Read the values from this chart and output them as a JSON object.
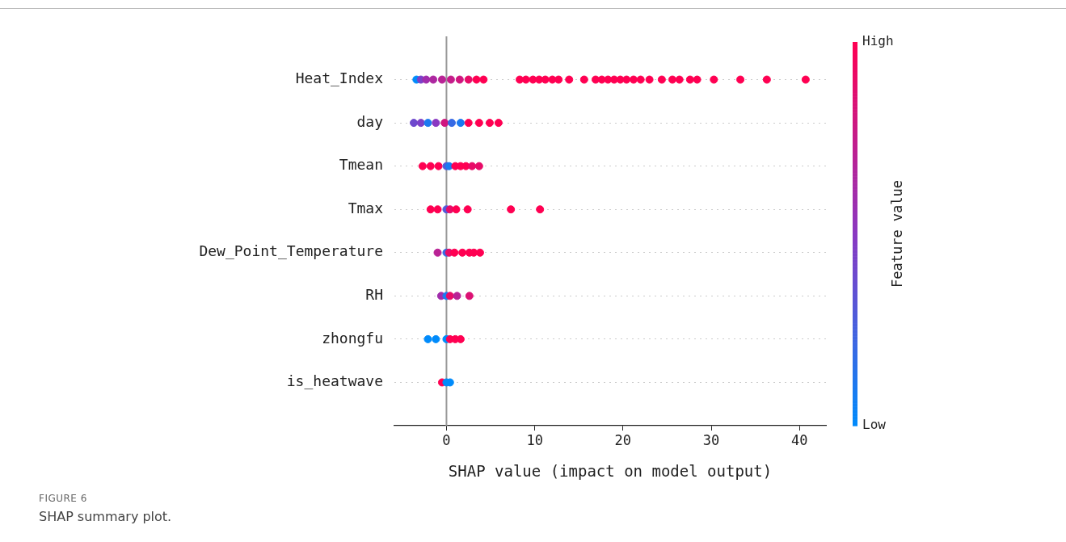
{
  "chart_data": {
    "type": "scatter",
    "orientation": "horizontal",
    "xlabel": "SHAP value (impact on model output)",
    "clabel": "Feature value",
    "categories": [
      "Heat_Index",
      "day",
      "Tmean",
      "Tmax",
      "Dew_Point_Temperature",
      "RH",
      "zhongfu",
      "is_heatwave"
    ],
    "series": [
      {
        "x": [
          "Heat_Index",
          "Heat_Index",
          "Heat_Index",
          "Heat_Index",
          "Heat_Index",
          "Heat_Index",
          "Heat_Index",
          "Heat_Index",
          "Heat_Index",
          "Heat_Index",
          "Heat_Index",
          "Heat_Index",
          "Heat_Index",
          "Heat_Index",
          "Heat_Index",
          "Heat_Index",
          "Heat_Index",
          "Heat_Index",
          "Heat_Index",
          "Heat_Index",
          "Heat_Index",
          "Heat_Index",
          "Heat_Index",
          "Heat_Index",
          "Heat_Index",
          "Heat_Index",
          "Heat_Index",
          "Heat_Index",
          "Heat_Index",
          "Heat_Index",
          "Heat_Index",
          "Heat_Index",
          "Heat_Index",
          "Heat_Index",
          "Heat_Index",
          "Heat_Index",
          "Heat_Index"
        ],
        "values": [
          -3.4,
          -2.9,
          -2.3,
          -1.5,
          -0.5,
          0.5,
          1.5,
          2.5,
          3.4,
          4.2,
          8.3,
          9.0,
          9.8,
          10.5,
          11.2,
          12.0,
          12.7,
          13.9,
          15.6,
          16.9,
          17.6,
          18.3,
          19.0,
          19.7,
          20.4,
          21.2,
          22.0,
          23.0,
          24.4,
          25.6,
          26.4,
          27.6,
          28.4,
          30.3,
          33.3,
          36.3,
          40.7
        ],
        "cvalues": [
          0,
          0.45,
          0.6,
          0.65,
          0.7,
          0.75,
          0.8,
          0.9,
          1,
          1,
          1,
          1,
          1,
          1,
          1,
          1,
          1,
          1,
          1,
          1,
          1,
          1,
          1,
          1,
          1,
          1,
          1,
          1,
          1,
          1,
          1,
          1,
          1,
          1,
          1,
          1,
          1
        ],
        "colors": [
          "#008bfb",
          "#7c40c8",
          "#a12dac",
          "#ad27a0",
          "#b92295",
          "#c51c8a",
          "#d0167f",
          "#e80b68",
          "#ff0052",
          "#ff0052",
          "#ff0052",
          "#ff0052",
          "#ff0052",
          "#ff0052",
          "#ff0052",
          "#ff0052",
          "#ff0052",
          "#ff0052",
          "#ff0052",
          "#ff0052",
          "#ff0052",
          "#ff0052",
          "#ff0052",
          "#ff0052",
          "#ff0052",
          "#ff0052",
          "#ff0052",
          "#ff0052",
          "#ff0052",
          "#ff0052",
          "#ff0052",
          "#ff0052",
          "#ff0052",
          "#ff0052",
          "#ff0052",
          "#ff0052",
          "#ff0052"
        ]
      },
      {
        "x": [
          "day",
          "day",
          "day",
          "day",
          "day",
          "day",
          "day",
          "day",
          "day",
          "day",
          "day"
        ],
        "values": [
          -3.7,
          -2.9,
          -2.1,
          -1.2,
          -0.2,
          0.6,
          1.6,
          2.5,
          3.7,
          4.9,
          5.9
        ],
        "cvalues": [
          0.4,
          0.45,
          0.1,
          0.5,
          0.8,
          0.2,
          0.1,
          1,
          1,
          1,
          1
        ],
        "colors": [
          "#6e49cd",
          "#7c40c8",
          "#1c7af0",
          "#8a38c2",
          "#d0167f",
          "#376ae4",
          "#1c7af0",
          "#ff0052",
          "#ff0052",
          "#ff0052",
          "#ff0052"
        ]
      },
      {
        "x": [
          "Tmean",
          "Tmean",
          "Tmean",
          "Tmean",
          "Tmean",
          "Tmean",
          "Tmean",
          "Tmean",
          "Tmean",
          "Tmean"
        ],
        "values": [
          -2.7,
          -1.8,
          -0.9,
          0,
          0.3,
          1.0,
          1.6,
          2.2,
          2.9,
          3.7
        ],
        "cvalues": [
          1,
          1,
          1,
          0.3,
          0.1,
          1,
          1,
          1,
          0.9,
          0.9
        ],
        "colors": [
          "#ff0052",
          "#ff0052",
          "#ff0052",
          "#5359d9",
          "#1c7af0",
          "#ff0052",
          "#ff0052",
          "#ff0052",
          "#e80b68",
          "#e80b68"
        ]
      },
      {
        "x": [
          "Tmax",
          "Tmax",
          "Tmax",
          "Tmax",
          "Tmax",
          "Tmax",
          "Tmax",
          "Tmax"
        ],
        "values": [
          -1.8,
          -1.0,
          0,
          0.4,
          1.1,
          2.4,
          7.3,
          10.6
        ],
        "cvalues": [
          1,
          1,
          0.3,
          0.9,
          1,
          1,
          1,
          1
        ],
        "colors": [
          "#ff0052",
          "#ff0052",
          "#5359d9",
          "#e80b68",
          "#ff0052",
          "#ff0052",
          "#ff0052",
          "#ff0052"
        ]
      },
      {
        "x": [
          "Dew_Point_Temperature",
          "Dew_Point_Temperature",
          "Dew_Point_Temperature",
          "Dew_Point_Temperature",
          "Dew_Point_Temperature",
          "Dew_Point_Temperature",
          "Dew_Point_Temperature",
          "Dew_Point_Temperature"
        ],
        "values": [
          -1.0,
          0,
          0.3,
          0.9,
          1.8,
          2.6,
          3.1,
          3.8
        ],
        "cvalues": [
          0.7,
          0.2,
          0.9,
          1,
          1,
          1,
          1,
          1
        ],
        "colors": [
          "#b92295",
          "#376ae4",
          "#e80b68",
          "#ff0052",
          "#ff0052",
          "#ff0052",
          "#ff0052",
          "#ff0052"
        ]
      },
      {
        "x": [
          "RH",
          "RH",
          "RH",
          "RH",
          "RH"
        ],
        "values": [
          -0.6,
          0,
          0.4,
          1.2,
          2.6
        ],
        "cvalues": [
          0.6,
          0.1,
          0.9,
          0.7,
          0.85
        ],
        "colors": [
          "#a12dac",
          "#1c7af0",
          "#e80b68",
          "#b92295",
          "#dc1174"
        ]
      },
      {
        "x": [
          "zhongfu",
          "zhongfu",
          "zhongfu",
          "zhongfu",
          "zhongfu",
          "zhongfu"
        ],
        "values": [
          -2.1,
          -1.2,
          0,
          0.4,
          1.0,
          1.6
        ],
        "cvalues": [
          0,
          0,
          0,
          1,
          1,
          1
        ],
        "colors": [
          "#008bfb",
          "#008bfb",
          "#008bfb",
          "#ff0052",
          "#ff0052",
          "#ff0052"
        ]
      },
      {
        "x": [
          "is_heatwave",
          "is_heatwave",
          "is_heatwave"
        ],
        "values": [
          -0.5,
          0,
          0.4
        ],
        "cvalues": [
          1,
          0,
          0
        ],
        "colors": [
          "#ff0052",
          "#008bfb",
          "#008bfb"
        ]
      }
    ],
    "xlim": [
      -5.9,
      43
    ],
    "xticks": [
      0,
      10,
      20,
      30,
      40
    ],
    "clim": [
      0,
      1
    ],
    "cticks": [
      {
        "value": 0,
        "label": "Low"
      },
      {
        "value": 1,
        "label": "High"
      }
    ],
    "ref_lines": [
      {
        "axis": "x",
        "value": 0,
        "color": "#999999"
      }
    ],
    "grid": "y",
    "marker": "circle",
    "legend": false,
    "annotations": [
      "FIGURE 6",
      "SHAP summary plot."
    ]
  }
}
